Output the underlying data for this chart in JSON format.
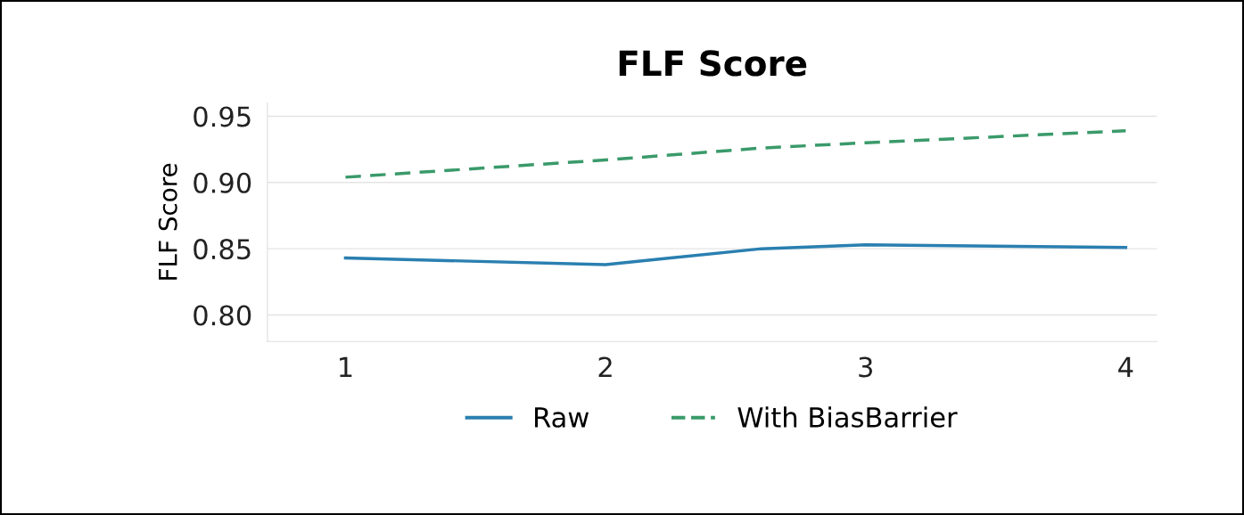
{
  "chart_data": {
    "type": "line",
    "title": "FLF Score",
    "ylabel": "FLF Score",
    "xlim": [
      0.7,
      4.12
    ],
    "xticks": [
      1,
      2,
      3,
      4
    ],
    "ylim": [
      0.78,
      0.96
    ],
    "yticks": [
      {
        "value": 0.8,
        "label": "0.80"
      },
      {
        "value": 0.85,
        "label": "0.85"
      },
      {
        "value": 0.9,
        "label": "0.90"
      },
      {
        "value": 0.95,
        "label": "0.95"
      }
    ],
    "grid": "y",
    "legend": "bottom",
    "marker": "none",
    "series": [
      {
        "name": "Raw",
        "color": "#2a7fb0",
        "line_style": "solid",
        "x": [
          1,
          2,
          2.6,
          3,
          4
        ],
        "values": [
          0.843,
          0.838,
          0.85,
          0.853,
          0.851
        ]
      },
      {
        "name": "With BiasBarrier",
        "color": "#3a9a6a",
        "line_style": "dashed",
        "x": [
          1,
          2,
          2.6,
          3,
          4
        ],
        "values": [
          0.904,
          0.917,
          0.926,
          0.93,
          0.939
        ]
      }
    ]
  }
}
